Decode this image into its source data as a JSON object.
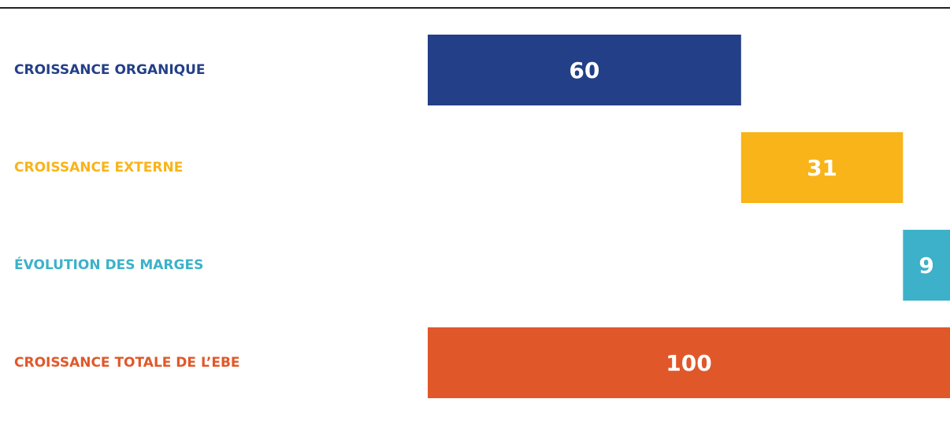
{
  "chart_data": {
    "type": "waterfall",
    "categories": [
      "CROISSANCE ORGANIQUE",
      "CROISSANCE EXTERNE",
      "ÉVOLUTION DES MARGES",
      "CROISSANCE TOTALE DE L’EBE"
    ],
    "values": [
      60,
      31,
      9,
      100
    ],
    "colors": [
      "#233f87",
      "#f8b418",
      "#3cb1c9",
      "#e0582a"
    ],
    "is_total": [
      false,
      false,
      false,
      true
    ]
  }
}
